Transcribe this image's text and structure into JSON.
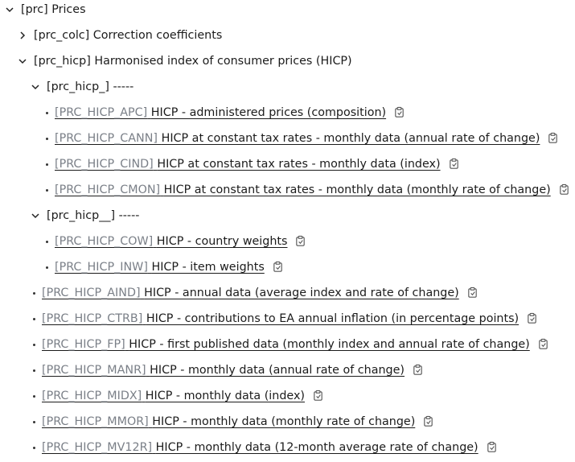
{
  "tree": [
    {
      "level": 0,
      "kind": "folder",
      "expanded": true,
      "label": "[prc] Prices"
    },
    {
      "level": 1,
      "kind": "folder",
      "expanded": false,
      "label": "[prc_colc] Correction coefficients"
    },
    {
      "level": 1,
      "kind": "folder",
      "expanded": true,
      "label": "[prc_hicp] Harmonised index of consumer prices (HICP)"
    },
    {
      "level": 2,
      "kind": "folder",
      "expanded": true,
      "label": "[prc_hicp_] -----"
    },
    {
      "level": 3,
      "kind": "dataset",
      "code": "[PRC_HICP_APC]",
      "title": "HICP - administered prices (composition)"
    },
    {
      "level": 3,
      "kind": "dataset",
      "code": "[PRC_HICP_CANN]",
      "title": "HICP at constant tax rates - monthly data (annual rate of change)"
    },
    {
      "level": 3,
      "kind": "dataset",
      "code": "[PRC_HICP_CIND]",
      "title": "HICP at constant tax rates - monthly data (index)"
    },
    {
      "level": 3,
      "kind": "dataset",
      "code": "[PRC_HICP_CMON]",
      "title": "HICP at constant tax rates - monthly data (monthly rate of change)"
    },
    {
      "level": 2,
      "kind": "folder",
      "expanded": true,
      "label": "[prc_hicp__] -----"
    },
    {
      "level": 3,
      "kind": "dataset",
      "code": "[PRC_HICP_COW]",
      "title": "HICP - country weights"
    },
    {
      "level": 3,
      "kind": "dataset",
      "code": "[PRC_HICP_INW]",
      "title": "HICP - item weights"
    },
    {
      "level": 2,
      "kind": "dataset",
      "code": "[PRC_HICP_AIND]",
      "title": "HICP - annual data (average index and rate of change)"
    },
    {
      "level": 2,
      "kind": "dataset",
      "code": "[PRC_HICP_CTRB]",
      "title": "HICP - contributions to EA annual inflation (in percentage points)"
    },
    {
      "level": 2,
      "kind": "dataset",
      "code": "[PRC_HICP_FP]",
      "title": "HICP - first published data (monthly index and annual rate of change)"
    },
    {
      "level": 2,
      "kind": "dataset",
      "code": "[PRC_HICP_MANR]",
      "title": "HICP - monthly data (annual rate of change)"
    },
    {
      "level": 2,
      "kind": "dataset",
      "code": "[PRC_HICP_MIDX]",
      "title": "HICP - monthly data (index)"
    },
    {
      "level": 2,
      "kind": "dataset",
      "code": "[PRC_HICP_MMOR]",
      "title": "HICP - monthly data (monthly rate of change)"
    },
    {
      "level": 2,
      "kind": "dataset",
      "code": "[PRC_HICP_MV12R]",
      "title": "HICP - monthly data (12-month average rate of change)"
    }
  ],
  "icons": {
    "expanded": "chevron-down-icon",
    "collapsed": "chevron-right-icon",
    "copy": "copy-clipboard-icon",
    "bullet": "bullet-icon"
  },
  "colors": {
    "text": "#1b1b1b",
    "code": "#7a7f87"
  }
}
